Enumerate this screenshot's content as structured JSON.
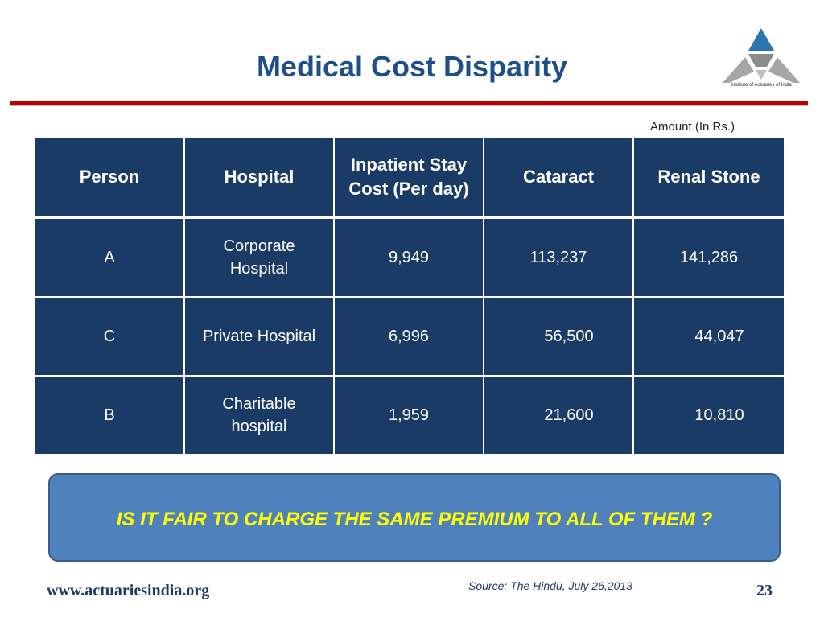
{
  "slide": {
    "title": "Medical Cost Disparity",
    "logo_text": "Institute of Actuaries of India",
    "amount_note": "Amount (In Rs.)",
    "question": "IS IT FAIR TO CHARGE THE SAME PREMIUM TO ALL OF THEM ?",
    "website": "www.actuariesindia.org",
    "source_label": "Source",
    "source_rest": ": The Hindu, July 26,2013",
    "page_number": "23",
    "colors": {
      "title": "#1f4e8c",
      "table_fill": "#1a3b66",
      "callout_fill": "#4f81bd",
      "callout_text": "#ffff00",
      "rule": "#c00000"
    }
  },
  "table": {
    "headers": [
      "Person",
      "Hospital",
      "Inpatient Stay Cost (Per day)",
      "Cataract",
      "Renal Stone"
    ],
    "rows": [
      [
        "A",
        "Corporate Hospital",
        "9,949",
        "113,237",
        "141,286"
      ],
      [
        "C",
        "Private Hospital",
        "6,996",
        "56,500",
        "44,047"
      ],
      [
        "B",
        "Charitable hospital",
        "1,959",
        "21,600",
        "10,810"
      ]
    ]
  }
}
